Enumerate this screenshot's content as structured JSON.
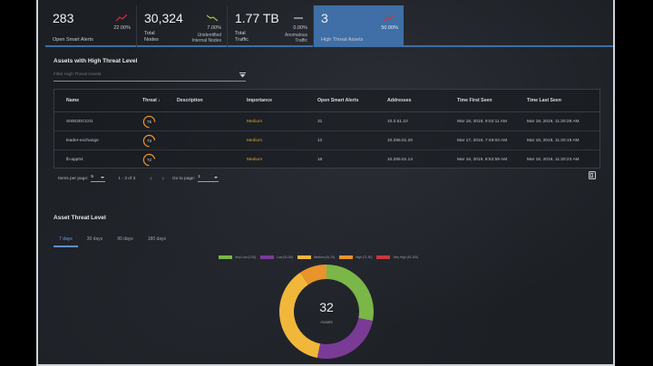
{
  "kpis": [
    {
      "value": "283",
      "label": "Open Smart Alerts",
      "pct": "22.00%",
      "trend": "up",
      "trend_color": "#c8373f",
      "sublabel": ""
    },
    {
      "value": "30,324",
      "label": "Total\nNodes",
      "pct": "7.00%",
      "trend": "down",
      "trend_color": "#a6c64a",
      "sublabel": "Unidentified\nInternal Nodes"
    },
    {
      "value": "1.77 TB",
      "label": "Total\nTraffic",
      "pct": "0.00%",
      "trend": "flat",
      "trend_color": "#c9ccd0",
      "sublabel": "Anomalous\nTraffic"
    },
    {
      "value": "3",
      "label": "High Threat Assets",
      "pct": "50.00%",
      "trend": "up",
      "trend_color": "#c8373f",
      "sublabel": "",
      "active": true
    }
  ],
  "assets_section": {
    "title": "Assets with High Threat Level",
    "filter_placeholder": "Filter High Threat Assets",
    "columns": [
      "Name",
      "Threat ↓",
      "Description",
      "Importance",
      "Open Smart Alerts",
      "Addresses",
      "Time First Seen",
      "Time Last Seen"
    ],
    "rows": [
      {
        "name": "S0002DCC01",
        "threat": "75",
        "threat_pct": 75,
        "description": "",
        "importance": "Medium",
        "alerts": "31",
        "address": "10.2.51.10",
        "first_seen": "Mar 18, 2019, 9:02:11 AM",
        "last_seen": "Mar 18, 2019, 11:20:28 AM"
      },
      {
        "name": "leader-exchange",
        "threat": "73",
        "threat_pct": 73,
        "description": "",
        "importance": "Medium",
        "alerts": "12",
        "address": "10.255.51.20",
        "first_seen": "Mar 17, 2019, 7:49:04 AM",
        "last_seen": "Mar 18, 2019, 11:20:19 AM"
      },
      {
        "name": "lb-app04",
        "threat": "72",
        "threat_pct": 72,
        "description": "",
        "importance": "Medium",
        "alerts": "16",
        "address": "10.255.51.14",
        "first_seen": "Mar 18, 2019, 8:52:59 AM",
        "last_seen": "Mar 18, 2019, 11:20:23 AM"
      }
    ],
    "pager": {
      "items_per_page_label": "Items per page:",
      "items_per_page": "5",
      "range": "1 - 3 of 3",
      "go_to_label": "Go to page:",
      "page": "1"
    }
  },
  "threat_section": {
    "title": "Asset Threat Level",
    "tabs": [
      "7 days",
      "30 days",
      "90 days",
      "180 days"
    ],
    "active_tab": 0,
    "center_value": "32",
    "center_label": "Assets"
  },
  "chart_data": {
    "type": "pie",
    "title": "Asset Threat Level",
    "donut": true,
    "total": 32,
    "categories": [
      "Very Low (0-30)",
      "Low (31-50)",
      "Medium (51-70)",
      "High (71-90)",
      "Very High (91-100)"
    ],
    "values": [
      9,
      8,
      12,
      3,
      0
    ],
    "colors": [
      "#7ab648",
      "#7a3b97",
      "#f0b73b",
      "#e8932c",
      "#c8373f"
    ],
    "legend_position": "top"
  }
}
